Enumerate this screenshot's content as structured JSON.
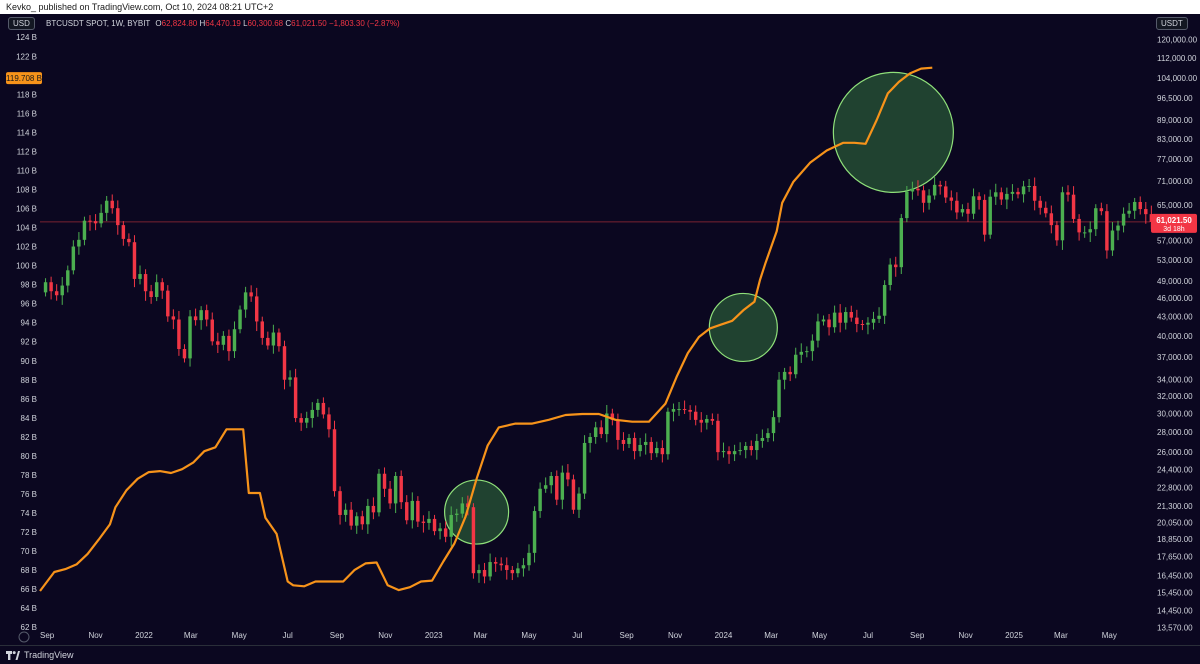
{
  "header": {
    "publisher": "Kevko_ published on TradingView.com, Oct 10, 2024 08:21 UTC+2",
    "left_unit": "USD",
    "right_unit": "USDT",
    "symbol": "BTCUSDT SPOT, 1W, BYBIT",
    "ohlc": {
      "o_label": "O",
      "o": "62,824.80",
      "h_label": "H",
      "h": "64,470.19",
      "l_label": "L",
      "l": "60,300.68",
      "c_label": "C",
      "c": "61,021.50",
      "change": "−1,803.30 (−2.87%)"
    }
  },
  "footer": {
    "brand": "TradingView",
    "zoom_icon": "zoom-icon"
  },
  "colors": {
    "bg": "#0b0720",
    "up": "#4caf50",
    "down": "#f23645",
    "line": "#f7931a",
    "circle_fill": "#2e6a3c",
    "circle_stroke": "#8fe07a",
    "last_price": "#f23645",
    "left_marker": "#f7931a"
  },
  "chart_data": {
    "type": "candlestick",
    "title": "",
    "left_axis": {
      "type": "linear",
      "ticks": [
        "62 B",
        "64 B",
        "66 B",
        "68 B",
        "70 B",
        "72 B",
        "74 B",
        "76 B",
        "78 B",
        "80 B",
        "82 B",
        "84 B",
        "86 B",
        "88 B",
        "90 B",
        "92 B",
        "94 B",
        "96 B",
        "98 B",
        "100 B",
        "102 B",
        "104 B",
        "106 B",
        "108 B",
        "110 B",
        "112 B",
        "114 B",
        "116 B",
        "118 B",
        "120 B",
        "122 B",
        "124 B"
      ],
      "range": [
        61.6,
        125.6
      ],
      "marker": "119.708 B"
    },
    "right_axis": {
      "type": "log",
      "ticks": [
        "13,570.00",
        "14,450.00",
        "15,450.00",
        "16,450.00",
        "17,650.00",
        "18,850.00",
        "20,050.00",
        "21,300.00",
        "22,800.00",
        "24,400.00",
        "26,000.00",
        "28,000.00",
        "30,000.00",
        "32,000.00",
        "34,000.00",
        "37,000.00",
        "40,000.00",
        "43,000.00",
        "46,000.00",
        "49,000.00",
        "53,000.00",
        "57,000.00",
        "61,021.50",
        "65,000.00",
        "71,000.00",
        "77,000.00",
        "83,000.00",
        "89,000.00",
        "96,500.00",
        "104,000.00",
        "112,000.00",
        "120,000.00"
      ],
      "range": [
        13400,
        128000
      ],
      "last_price": "61,021.50",
      "countdown": "3d 18h"
    },
    "x_axis": {
      "ticks": [
        "Sep",
        "Nov",
        "2022",
        "Mar",
        "May",
        "Jul",
        "Sep",
        "Nov",
        "2023",
        "Mar",
        "May",
        "Jul",
        "Sep",
        "Nov",
        "2024",
        "Mar",
        "May",
        "Jul",
        "Sep",
        "Nov",
        "2025",
        "Mar",
        "May"
      ],
      "range": [
        "2021-08-23",
        "2025-06-15"
      ]
    },
    "series": [
      {
        "name": "BTCUSDT",
        "kind": "candlestick",
        "step": "1W",
        "start": "2021-08-30",
        "close": [
          48800,
          47200,
          46500,
          48200,
          51000,
          55700,
          57100,
          61300,
          61200,
          60700,
          63100,
          66000,
          64200,
          60300,
          57300,
          56600,
          49400,
          50300,
          47200,
          46200,
          48800,
          47300,
          43000,
          42500,
          38100,
          36800,
          43000,
          42400,
          44000,
          42500,
          39200,
          38700,
          40000,
          37800,
          41000,
          44100,
          47000,
          46300,
          42200,
          39700,
          38600,
          40500,
          38500,
          34000,
          34300,
          29500,
          29000,
          29500,
          30400,
          31200,
          29900,
          28300,
          22500,
          20600,
          21000,
          19800,
          20500,
          19900,
          21300,
          20800,
          24000,
          22700,
          21500,
          23800,
          21600,
          20200,
          21700,
          20100,
          20000,
          20300,
          19400,
          19600,
          19000,
          20600,
          20700,
          21500,
          21200,
          16600,
          16800,
          16400,
          17300,
          17200,
          17100,
          16800,
          16600,
          16900,
          17100,
          17900,
          20900,
          22700,
          23000,
          23800,
          21800,
          24100,
          23500,
          21000,
          22300,
          26900,
          27500,
          28500,
          27800,
          30000,
          29300,
          27200,
          26800,
          27400,
          26100,
          26700,
          27000,
          25900,
          26400,
          25800,
          30200,
          30500,
          30500,
          30400,
          30200,
          29300,
          29000,
          29400,
          29200,
          26000,
          26100,
          25800,
          26100,
          26200,
          26600,
          26200,
          27100,
          27400,
          27900,
          29600,
          34000,
          35000,
          34700,
          37300,
          37700,
          37800,
          39300,
          42200,
          42500,
          41300,
          43600,
          42000,
          43700,
          42800,
          41800,
          41700,
          42000,
          42600,
          43100,
          48300,
          52100,
          51600,
          61900,
          68300,
          69000,
          68600,
          65500,
          67300,
          70000,
          69600,
          66800,
          66000,
          63200,
          64000,
          62900,
          67100,
          66200,
          58200,
          67000,
          68100,
          66300,
          67700,
          68200,
          67600,
          69600,
          69700,
          66000,
          64300,
          63000,
          60300,
          57000,
          68100,
          67500,
          61700,
          58700,
          58700,
          59400,
          64200,
          63500,
          54900,
          59100,
          60200,
          62900,
          63600,
          65700,
          64000,
          62800,
          61000
        ],
        "note": "weekly closes estimated from the right price axis; the first open of each candle is the previous close (first open 47,000)"
      },
      {
        "name": "",
        "kind": "line",
        "axis": "left",
        "points": [
          [
            "2021-08-23",
            65.8
          ],
          [
            "2021-09-10",
            67.8
          ],
          [
            "2021-09-24",
            68.1
          ],
          [
            "2021-10-08",
            68.6
          ],
          [
            "2021-10-22",
            69.7
          ],
          [
            "2021-11-05",
            71.2
          ],
          [
            "2021-11-19",
            72.8
          ],
          [
            "2021-11-26",
            74.6
          ],
          [
            "2021-12-10",
            76.4
          ],
          [
            "2021-12-24",
            77.6
          ],
          [
            "2022-01-07",
            78.3
          ],
          [
            "2022-01-21",
            78.4
          ],
          [
            "2022-02-04",
            78.2
          ],
          [
            "2022-02-18",
            78.6
          ],
          [
            "2022-03-04",
            79.3
          ],
          [
            "2022-03-18",
            80.5
          ],
          [
            "2022-04-01",
            80.9
          ],
          [
            "2022-04-15",
            82.8
          ],
          [
            "2022-05-06",
            82.8
          ],
          [
            "2022-05-13",
            76.1
          ],
          [
            "2022-05-27",
            76.1
          ],
          [
            "2022-06-03",
            73.5
          ],
          [
            "2022-06-17",
            71.8
          ],
          [
            "2022-07-01",
            66.8
          ],
          [
            "2022-07-08",
            66.4
          ],
          [
            "2022-07-22",
            66.3
          ],
          [
            "2022-08-05",
            66.8
          ],
          [
            "2022-08-19",
            66.8
          ],
          [
            "2022-09-09",
            66.8
          ],
          [
            "2022-09-23",
            68.0
          ],
          [
            "2022-10-07",
            68.7
          ],
          [
            "2022-10-21",
            68.8
          ],
          [
            "2022-11-04",
            66.4
          ],
          [
            "2022-11-18",
            65.9
          ],
          [
            "2022-12-02",
            66.2
          ],
          [
            "2022-12-16",
            66.8
          ],
          [
            "2022-12-30",
            66.9
          ],
          [
            "2023-01-13",
            68.9
          ],
          [
            "2023-01-27",
            70.8
          ],
          [
            "2023-02-10",
            73.6
          ],
          [
            "2023-02-24",
            77.6
          ],
          [
            "2023-03-10",
            81.1
          ],
          [
            "2023-03-24",
            83.0
          ],
          [
            "2023-04-14",
            83.4
          ],
          [
            "2023-05-05",
            83.4
          ],
          [
            "2023-05-26",
            83.8
          ],
          [
            "2023-06-16",
            84.3
          ],
          [
            "2023-07-07",
            84.4
          ],
          [
            "2023-07-28",
            84.4
          ],
          [
            "2023-08-18",
            83.8
          ],
          [
            "2023-09-08",
            83.6
          ],
          [
            "2023-09-29",
            83.6
          ],
          [
            "2023-10-20",
            85.5
          ],
          [
            "2023-11-03",
            88.3
          ],
          [
            "2023-11-17",
            90.8
          ],
          [
            "2023-12-01",
            92.5
          ],
          [
            "2023-12-15",
            93.4
          ],
          [
            "2023-12-29",
            93.8
          ],
          [
            "2024-01-12",
            94.2
          ],
          [
            "2024-01-26",
            95.3
          ],
          [
            "2024-02-09",
            96.2
          ],
          [
            "2024-02-16",
            98.5
          ],
          [
            "2024-02-23",
            100.3
          ],
          [
            "2024-03-08",
            103.6
          ],
          [
            "2024-03-15",
            106.6
          ],
          [
            "2024-03-29",
            108.8
          ],
          [
            "2024-04-19",
            110.8
          ],
          [
            "2024-05-10",
            112.1
          ],
          [
            "2024-05-31",
            112.9
          ],
          [
            "2024-06-14",
            112.9
          ],
          [
            "2024-06-28",
            112.8
          ],
          [
            "2024-07-12",
            115.3
          ],
          [
            "2024-07-26",
            118.1
          ],
          [
            "2024-08-09",
            119.3
          ],
          [
            "2024-08-23",
            120.2
          ],
          [
            "2024-09-06",
            120.7
          ],
          [
            "2024-09-20",
            120.8
          ]
        ]
      }
    ],
    "annotations": [
      {
        "kind": "circle",
        "date": "2023-02-24",
        "left_value": 74.1
      },
      {
        "kind": "circle",
        "date": "2024-01-26",
        "left_value": 93.5
      },
      {
        "kind": "circle",
        "date": "2024-08-02",
        "left_value": 114.0
      }
    ],
    "grid": false,
    "legend": "top-left"
  }
}
